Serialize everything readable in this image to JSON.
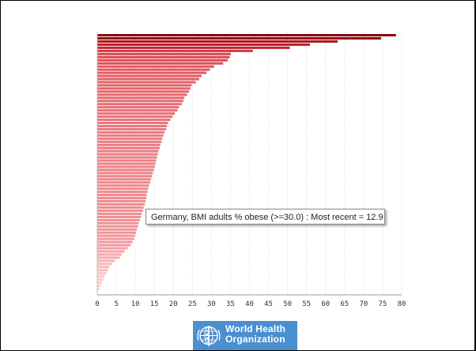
{
  "chart_data": {
    "type": "bar",
    "orientation": "horizontal",
    "xlim": [
      0,
      80
    ],
    "x_ticks": [
      "0",
      "5",
      "10",
      "15",
      "20",
      "25",
      "30",
      "35",
      "40",
      "45",
      "50",
      "55",
      "60",
      "65",
      "70",
      "75",
      "80"
    ],
    "grid": "vertical-dotted",
    "color_scale": [
      "#fce4e4",
      "#f7b6b8",
      "#ee8288",
      "#e2545d",
      "#c7202b",
      "#8b0c12"
    ],
    "values": [
      78.5,
      74.6,
      63.2,
      55.9,
      50.6,
      40.9,
      35.1,
      34.8,
      34.3,
      33.1,
      30.7,
      29.6,
      28.7,
      27.4,
      26.8,
      25.9,
      24.8,
      24.5,
      24.1,
      23.6,
      22.9,
      22.6,
      22.2,
      21.5,
      21.1,
      20.4,
      19.8,
      19.2,
      18.6,
      18.3,
      18.1,
      17.7,
      17.4,
      17.1,
      16.9,
      16.6,
      16.4,
      16.1,
      15.9,
      15.7,
      15.5,
      15.3,
      15.1,
      14.9,
      14.6,
      14.4,
      14.1,
      13.9,
      13.6,
      13.4,
      13.2,
      13.0,
      12.9,
      12.7,
      12.5,
      12.2,
      12.0,
      11.7,
      11.5,
      11.2,
      10.9,
      10.7,
      10.4,
      10.2,
      9.9,
      9.7,
      9.3,
      8.8,
      8.0,
      7.2,
      6.4,
      5.9,
      4.6,
      3.8,
      3.2,
      2.8,
      2.4,
      1.9,
      1.6,
      1.2,
      0.9,
      0.6
    ]
  },
  "tooltip": {
    "text": "Germany, BMI adults % obese (>=30.0) : Most recent = 12.9"
  },
  "logo": {
    "line1": "World Health",
    "line2": "Organization"
  }
}
